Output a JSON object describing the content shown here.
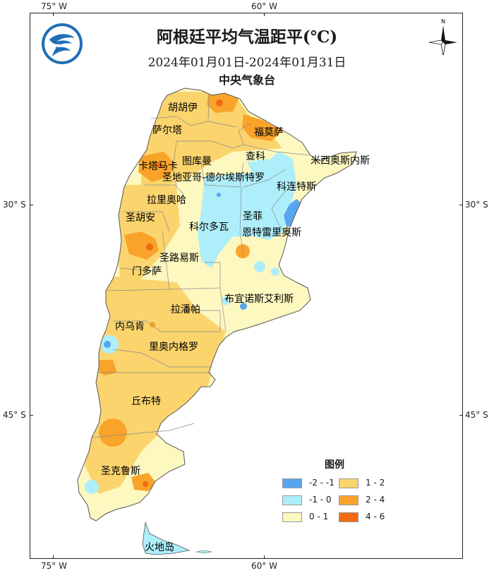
{
  "map": {
    "title": "阿根廷平均气温距平(℃)",
    "date_range": "2024年01月01日-2024年01月31日",
    "agency": "中央气象台",
    "logo": "cma-logo-icon",
    "compass": {
      "icon": "north-arrow-icon",
      "label": "N"
    },
    "lon_ticks": {
      "top": [
        "75° W",
        "60° W"
      ],
      "bottom": [
        "75° W",
        "60° W"
      ]
    },
    "lat_ticks": {
      "left": [
        "30° S",
        "45° S"
      ],
      "right": [
        "30° S",
        "45° S"
      ]
    },
    "regions": [
      "胡胡伊",
      "萨尔塔",
      "福莫萨",
      "查科",
      "图库曼",
      "卡塔马卡",
      "圣地亚哥-德尔埃斯特罗",
      "米西奥斯内斯",
      "科连特斯",
      "拉里奥哈",
      "圣菲",
      "圣胡安",
      "科尔多瓦",
      "恩特雷里奥斯",
      "圣路易斯",
      "门多萨",
      "布宜诺斯艾利斯",
      "拉潘帕",
      "内乌肯",
      "里奥内格罗",
      "丘布特",
      "圣克鲁斯",
      "火地岛"
    ],
    "legend": {
      "title": "图例",
      "items": [
        {
          "label": "-2 - -1",
          "color": "#58a6f0"
        },
        {
          "label": "1 - 2",
          "color": "#fbd46e"
        },
        {
          "label": "-1 - 0",
          "color": "#aeeefa"
        },
        {
          "label": "2 - 4",
          "color": "#f9a32a"
        },
        {
          "label": "0 - 1",
          "color": "#fdf8c0"
        },
        {
          "label": "4 - 6",
          "color": "#f36a12"
        }
      ]
    },
    "colors": {
      "cold2": "#58a6f0",
      "cold1": "#aeeefa",
      "warm0": "#fdf8c0",
      "warm1": "#fbd46e",
      "warm2": "#f9a32a",
      "warm3": "#f36a12"
    }
  }
}
